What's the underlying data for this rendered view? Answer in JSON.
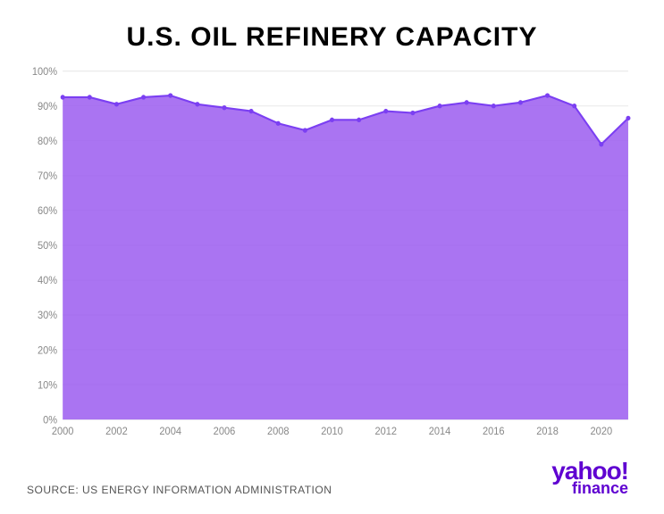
{
  "chart": {
    "type": "area",
    "title": "U.S. OIL REFINERY CAPACITY",
    "title_fontsize": 30,
    "title_fontweight": 900,
    "background_color": "#ffffff",
    "area_color": "#9b5cf0",
    "area_opacity": 0.85,
    "line_color": "#7b3ff2",
    "line_width": 2,
    "marker_color": "#7b3ff2",
    "marker_radius": 2.5,
    "grid_color": "#e8e8e8",
    "axis_label_color": "#888888",
    "axis_label_fontsize": 11,
    "ylim": [
      0,
      100
    ],
    "ytick_step": 10,
    "y_suffix": "%",
    "xlim": [
      2000,
      2021
    ],
    "xtick_step": 2,
    "years": [
      2000,
      2001,
      2002,
      2003,
      2004,
      2005,
      2006,
      2007,
      2008,
      2009,
      2010,
      2011,
      2012,
      2013,
      2014,
      2015,
      2016,
      2017,
      2018,
      2019,
      2020,
      2021
    ],
    "values": [
      92.5,
      92.5,
      90.5,
      92.5,
      93,
      90.5,
      89.5,
      88.5,
      85,
      83,
      86,
      86,
      88.5,
      88,
      90,
      91,
      90,
      91,
      93,
      90,
      79,
      86.5
    ]
  },
  "footer": {
    "source_label": "SOURCE: US ENERGY INFORMATION ADMINISTRATION",
    "logo_main": "yahoo!",
    "logo_sub": "finance",
    "logo_color": "#5f01d1"
  }
}
